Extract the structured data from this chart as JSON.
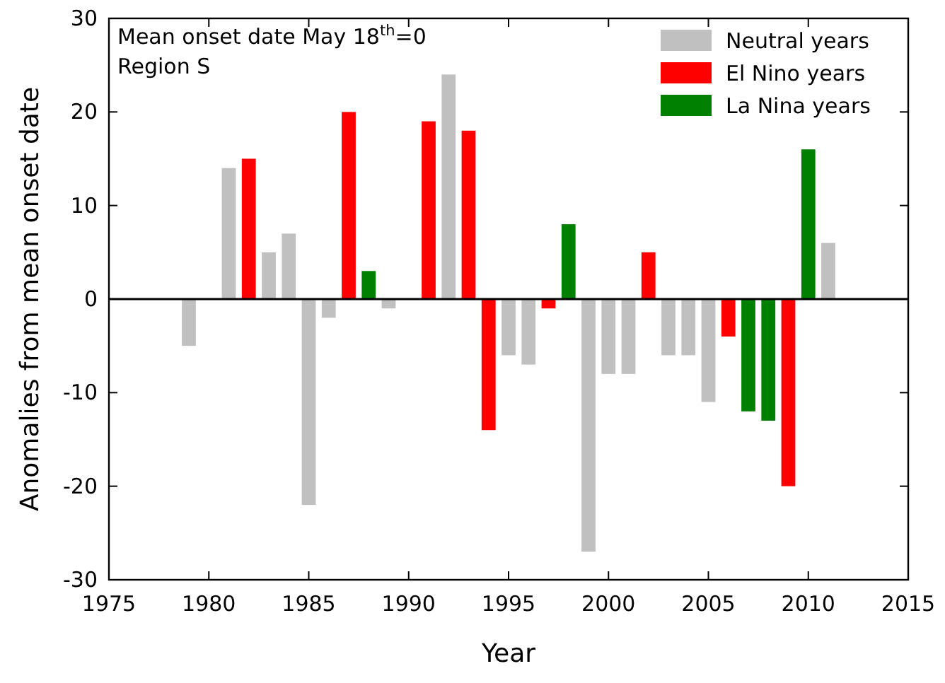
{
  "chart_data": {
    "type": "bar",
    "xlabel": "Year",
    "ylabel": "Anomalies from mean onset date",
    "annotations": [
      "Mean onset date May 18$^{th}$=0",
      "Region S"
    ],
    "xlim": [
      1975,
      2015
    ],
    "xticks": [
      1975,
      1980,
      1985,
      1990,
      1995,
      2000,
      2005,
      2010,
      2015
    ],
    "ylim": [
      -30,
      30
    ],
    "yticks": [
      -30,
      -20,
      -10,
      0,
      10,
      20,
      30
    ],
    "grid": false,
    "legend": "top right",
    "ref_lines": [
      {
        "axis": "y",
        "value": 0,
        "color": "#000000"
      }
    ],
    "series": [
      {
        "name": "Neutral years",
        "color": "#c0c0c0",
        "x": [
          1979,
          1981,
          1983,
          1984,
          1985,
          1986,
          1989,
          1992,
          1995,
          1996,
          1999,
          2000,
          2001,
          2003,
          2004,
          2005,
          2011
        ],
        "values": [
          -5,
          14,
          5,
          7,
          -22,
          -2,
          -1,
          24,
          -6,
          -7,
          -27,
          -8,
          -8,
          -6,
          -6,
          -11,
          6
        ]
      },
      {
        "name": "El Nino years",
        "color": "#ff0000",
        "x": [
          1982,
          1987,
          1991,
          1993,
          1994,
          1997,
          2002,
          2006,
          2009
        ],
        "values": [
          15,
          20,
          19,
          18,
          -14,
          -1,
          5,
          -4,
          -20
        ]
      },
      {
        "name": "La Nina years",
        "color": "#008000",
        "x": [
          1988,
          1998,
          2007,
          2008,
          2010
        ],
        "values": [
          3,
          8,
          -12,
          -13,
          16
        ]
      }
    ]
  }
}
